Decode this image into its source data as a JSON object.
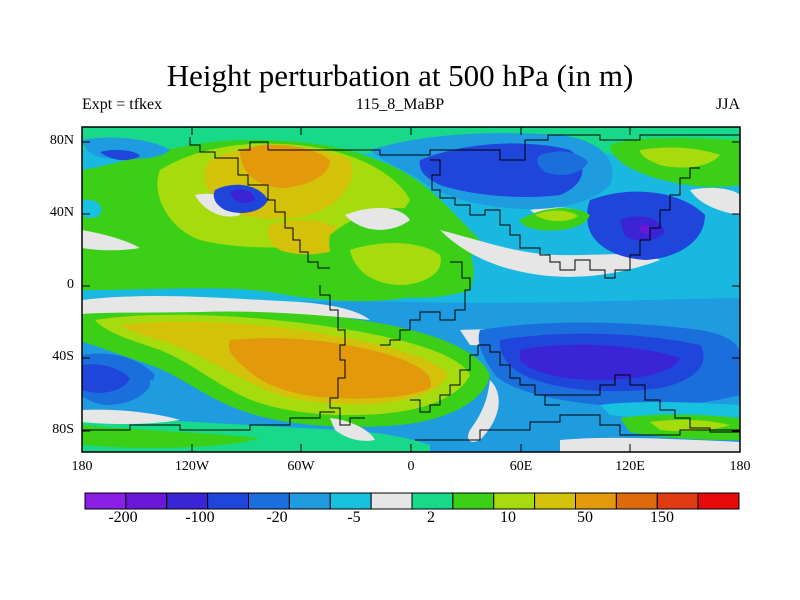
{
  "title": "Height perturbation at 500 hPa (in m)",
  "subtitle_left": "Expt = tfkex",
  "subtitle_center": "115_8_MaBP",
  "subtitle_right": "JJA",
  "lat_labels": [
    "80N",
    "40N",
    "0",
    "40S",
    "80S"
  ],
  "lon_labels": [
    "180",
    "120W",
    "60W",
    "0",
    "60E",
    "120E",
    "180"
  ],
  "colorbar": {
    "colors": [
      "#8a1fe6",
      "#6a17d8",
      "#3a24d6",
      "#1f45da",
      "#1a6fdc",
      "#1f9be0",
      "#17c2e0",
      "#e6e6e6",
      "#18d989",
      "#3ccf18",
      "#a6dc0e",
      "#d4c20a",
      "#e29a0a",
      "#df6a0a",
      "#e03a12",
      "#e60a0a"
    ],
    "labels": [
      "-200",
      "-100",
      "-20",
      "-5",
      "2",
      "10",
      "50",
      "150"
    ]
  }
}
